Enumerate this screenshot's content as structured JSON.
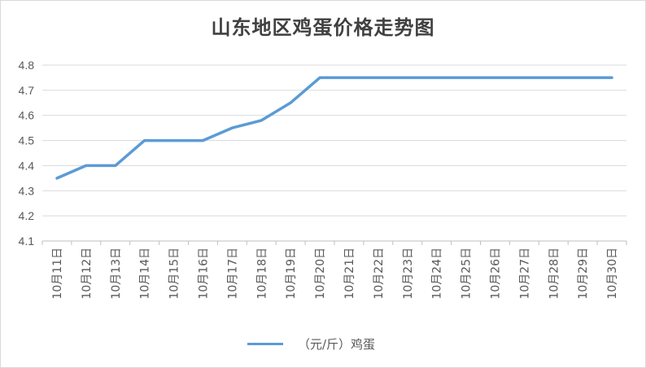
{
  "chart_data": {
    "type": "line",
    "title": "山东地区鸡蛋价格走势图",
    "categories": [
      "10月11日",
      "10月12日",
      "10月13日",
      "10月14日",
      "10月15日",
      "10月16日",
      "10月17日",
      "10月18日",
      "10月19日",
      "10月20日",
      "10月21日",
      "10月22日",
      "10月23日",
      "10月24日",
      "10月25日",
      "10月26日",
      "10月27日",
      "10月28日",
      "10月29日",
      "10月30日"
    ],
    "series": [
      {
        "name": "（元/斤）鸡蛋",
        "color": "#5b9bd5",
        "values": [
          4.35,
          4.4,
          4.4,
          4.5,
          4.5,
          4.5,
          4.55,
          4.58,
          4.65,
          4.75,
          4.75,
          4.75,
          4.75,
          4.75,
          4.75,
          4.75,
          4.75,
          4.75,
          4.75,
          4.75
        ]
      }
    ],
    "ylim": [
      4.1,
      4.8
    ],
    "yticks": [
      "4.1",
      "4.2",
      "4.3",
      "4.4",
      "4.5",
      "4.6",
      "4.7",
      "4.8"
    ],
    "grid": true,
    "legend_position": "bottom"
  }
}
